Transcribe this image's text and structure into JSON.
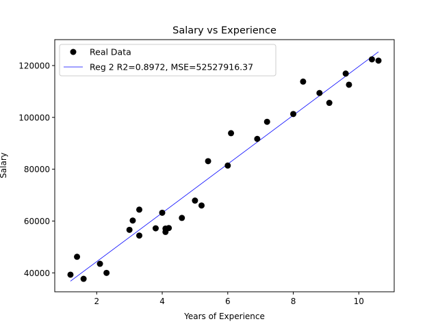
{
  "chart_data": {
    "type": "scatter",
    "title": "Salary vs Experience",
    "xlabel": "Years of Experience",
    "ylabel": "Salary",
    "xlim": [
      0.72,
      11.08
    ],
    "ylim": [
      32700,
      130000
    ],
    "xticks": [
      2,
      4,
      6,
      8,
      10
    ],
    "xtick_labels": [
      "2",
      "4",
      "6",
      "8",
      "10"
    ],
    "yticks": [
      40000,
      60000,
      80000,
      100000,
      120000
    ],
    "ytick_labels": [
      "40000",
      "60000",
      "80000",
      "100000",
      "120000"
    ],
    "grid": false,
    "legend_placement": "upper-left",
    "series": [
      {
        "name": "Real Data",
        "kind": "scatter",
        "color": "#000000",
        "x": [
          1.2,
          1.4,
          1.6,
          2.1,
          2.3,
          3.0,
          3.1,
          3.3,
          3.3,
          3.8,
          4.0,
          4.1,
          4.1,
          4.2,
          4.6,
          5.0,
          5.2,
          5.4,
          6.0,
          6.1,
          6.9,
          7.2,
          8.0,
          8.3,
          8.8,
          9.1,
          9.6,
          9.7,
          10.4,
          10.6
        ],
        "y": [
          39300,
          46200,
          37700,
          43500,
          40000,
          56600,
          60200,
          54400,
          64400,
          57200,
          63200,
          55800,
          57100,
          57300,
          61200,
          67900,
          66000,
          83100,
          81400,
          93900,
          91700,
          98300,
          101300,
          113800,
          109400,
          105600,
          116900,
          112600,
          122400,
          121900
        ]
      },
      {
        "name": "Reg 2 R2=0.8972, MSE=52527916.37",
        "kind": "line",
        "color": "#0000ff",
        "x": [
          1.2,
          10.6
        ],
        "y": [
          36800,
          125300
        ]
      }
    ]
  }
}
